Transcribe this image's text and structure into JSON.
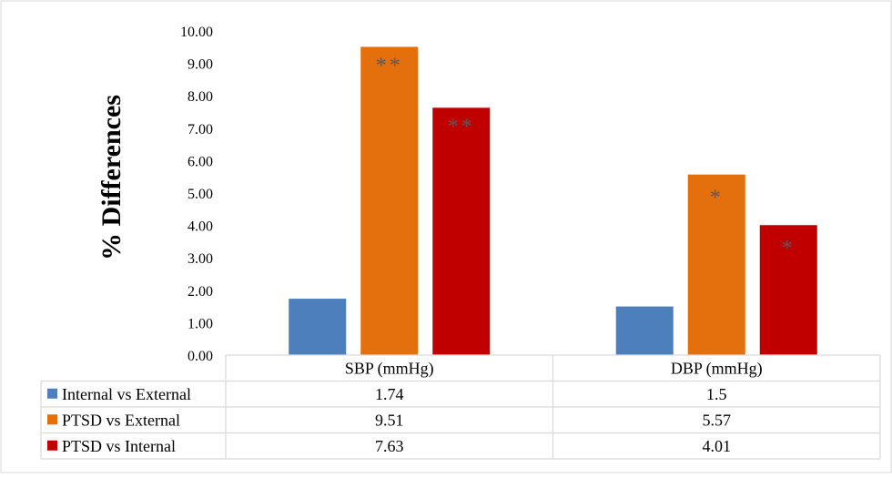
{
  "chart_data": {
    "type": "bar",
    "ylabel": "% Differences",
    "ylim": [
      0,
      10
    ],
    "ytick_step": 1,
    "ytick_labels": [
      "0.00",
      "1.00",
      "2.00",
      "3.00",
      "4.00",
      "5.00",
      "6.00",
      "7.00",
      "8.00",
      "9.00",
      "10.00"
    ],
    "categories": [
      "SBP (mmHg)",
      "DBP (mmHg)"
    ],
    "series": [
      {
        "name": "Internal vs External",
        "color": "#4e7fbd",
        "values": [
          1.74,
          1.5
        ],
        "value_labels": [
          "1.74",
          "1.5"
        ],
        "annotations": [
          "",
          ""
        ]
      },
      {
        "name": "PTSD vs External",
        "color": "#e36f0d",
        "values": [
          9.51,
          5.57
        ],
        "value_labels": [
          "9.51",
          "5.57"
        ],
        "annotations": [
          "**",
          "*"
        ]
      },
      {
        "name": "PTSD vs Internal",
        "color": "#c00000",
        "values": [
          7.63,
          4.01
        ],
        "value_labels": [
          "7.63",
          "4.01"
        ],
        "annotations": [
          "**",
          "*"
        ]
      }
    ],
    "grid": false,
    "legend": "data-table below chart"
  }
}
